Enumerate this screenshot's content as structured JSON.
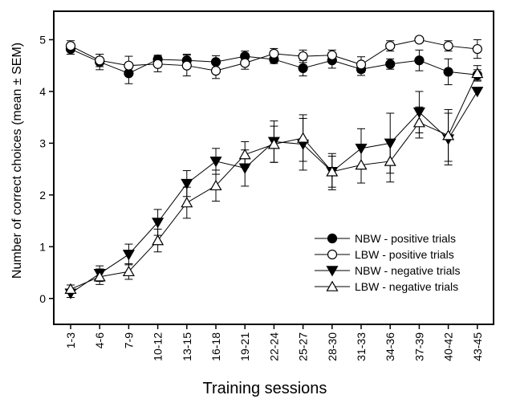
{
  "chart_data": {
    "type": "line",
    "xlabel": "Training sessions",
    "ylabel": "Number of correct choices (mean ± SEM)",
    "ylim": [
      -0.5,
      5.55
    ],
    "yticks": [
      0,
      1,
      2,
      3,
      4,
      5
    ],
    "grid": false,
    "legend_position": "bottom-right",
    "categories": [
      "1-3",
      "4-6",
      "7-9",
      "10-12",
      "13-15",
      "16-18",
      "19-21",
      "22-24",
      "25-27",
      "28-30",
      "31-33",
      "34-36",
      "37-39",
      "40-42",
      "43-45"
    ],
    "series": [
      {
        "name": "NBW - positive trials",
        "marker": "circle-filled",
        "values": [
          4.82,
          4.57,
          4.35,
          4.62,
          4.6,
          4.57,
          4.68,
          4.62,
          4.45,
          4.6,
          4.43,
          4.53,
          4.6,
          4.38,
          4.32
        ],
        "sem": [
          0.1,
          0.15,
          0.2,
          0.08,
          0.12,
          0.12,
          0.1,
          0.08,
          0.15,
          0.15,
          0.12,
          0.1,
          0.2,
          0.25,
          0.1
        ]
      },
      {
        "name": "LBW - positive trials",
        "marker": "circle-open",
        "values": [
          4.88,
          4.6,
          4.5,
          4.53,
          4.5,
          4.4,
          4.55,
          4.73,
          4.68,
          4.7,
          4.52,
          4.88,
          5.0,
          4.88,
          4.82
        ],
        "sem": [
          0.1,
          0.12,
          0.18,
          0.15,
          0.2,
          0.15,
          0.12,
          0.1,
          0.12,
          0.1,
          0.15,
          0.1,
          0.0,
          0.1,
          0.18
        ]
      },
      {
        "name": "NBW - negative trials",
        "marker": "triangle-down-filled",
        "values": [
          0.1,
          0.48,
          0.85,
          1.47,
          2.22,
          2.65,
          2.52,
          3.03,
          2.98,
          2.45,
          2.9,
          3.0,
          3.6,
          3.08,
          4.0
        ],
        "sem": [
          0.08,
          0.15,
          0.2,
          0.25,
          0.25,
          0.25,
          0.35,
          0.4,
          0.5,
          0.3,
          0.38,
          0.58,
          0.4,
          0.5,
          0.0
        ]
      },
      {
        "name": "LBW - negative trials",
        "marker": "triangle-up-open",
        "values": [
          0.18,
          0.42,
          0.52,
          1.12,
          1.85,
          2.18,
          2.78,
          2.98,
          3.1,
          2.45,
          2.58,
          2.65,
          3.4,
          3.15,
          4.35
        ],
        "sem": [
          0.08,
          0.15,
          0.15,
          0.22,
          0.3,
          0.3,
          0.25,
          0.35,
          0.45,
          0.35,
          0.35,
          0.4,
          0.3,
          0.5,
          0.15
        ]
      }
    ]
  }
}
